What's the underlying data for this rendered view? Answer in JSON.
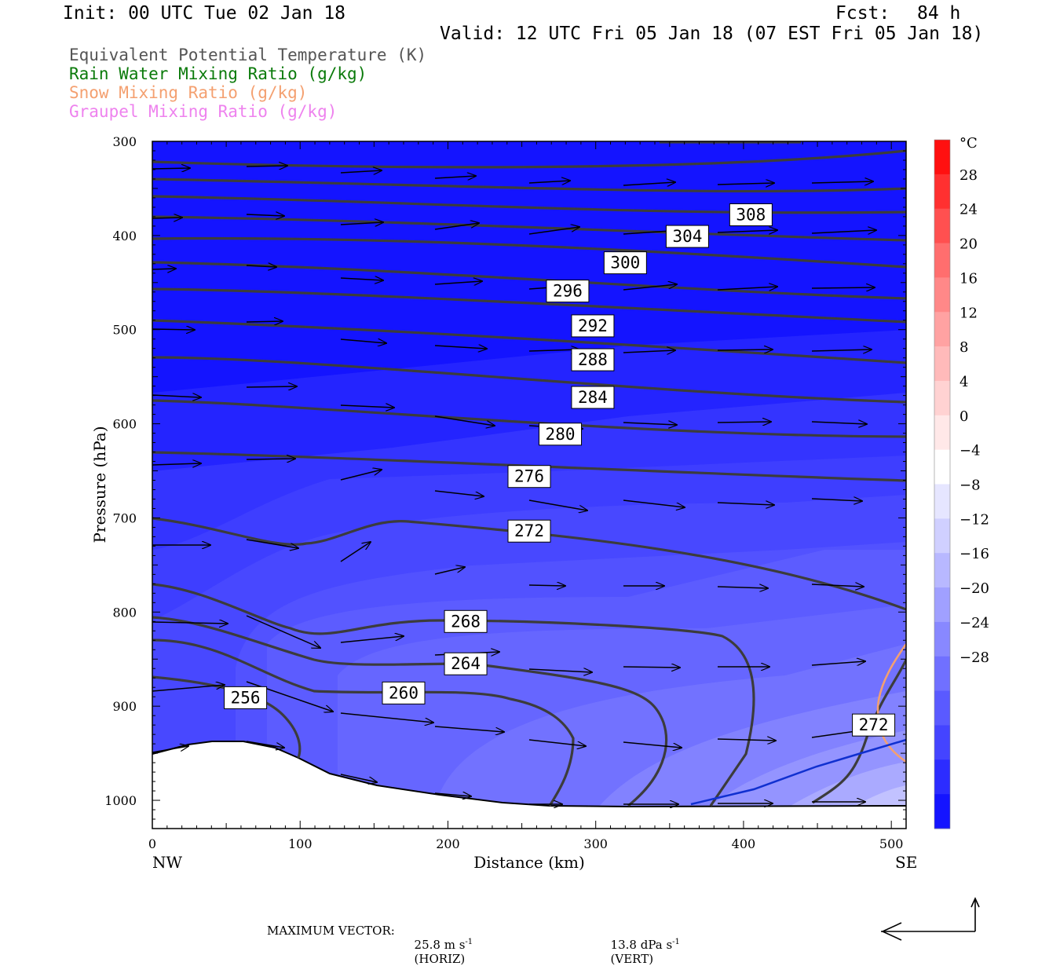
{
  "header": {
    "init": "Init: 00 UTC Tue 02 Jan 18",
    "fcst_label": "Fcst:",
    "fcst_value": "84 h",
    "valid": "Valid: 12 UTC Fri 05 Jan 18 (07 EST Fri 05 Jan 18)"
  },
  "legend": [
    {
      "text": "Equivalent Potential Temperature (K)",
      "color": "#555555"
    },
    {
      "text": "Rain Water Mixing Ratio (g/kg)",
      "color": "#0a7a0a"
    },
    {
      "text": "Snow Mixing Ratio (g/kg)",
      "color": "#f4a070"
    },
    {
      "text": "Graupel Mixing Ratio (g/kg)",
      "color": "#ee82ee"
    }
  ],
  "chart_data": {
    "type": "cross-section",
    "xlabel": "Distance (km)",
    "ylabel": "Pressure (hPa)",
    "xlim": [
      0,
      510
    ],
    "ylim": [
      1030,
      300
    ],
    "x_ticks": [
      0,
      100,
      200,
      300,
      400,
      500
    ],
    "y_ticks": [
      300,
      400,
      500,
      600,
      700,
      800,
      900,
      1000
    ],
    "x_end_labels": {
      "left": "NW",
      "right": "SE"
    },
    "colorbar": {
      "unit": "°C",
      "labels": [
        "28",
        "24",
        "20",
        "16",
        "12",
        "8",
        "4",
        "0",
        "−4",
        "−8",
        "−12",
        "−16",
        "−20",
        "−24",
        "−28"
      ],
      "colors": [
        "#ff1010",
        "#ff3030",
        "#ff5050",
        "#ff6e6e",
        "#ff8888",
        "#ffa2a2",
        "#ffbaba",
        "#ffd2d2",
        "#ffe8e8",
        "#ffffff",
        "#e6e6ff",
        "#d0d0ff",
        "#b8b8ff",
        "#a0a0ff",
        "#8888ff",
        "#7070ff",
        "#5a5aff",
        "#4444ff",
        "#2c2cff",
        "#1414ff"
      ]
    },
    "theta_e_labels": [
      {
        "value": "308",
        "x": 405,
        "p": 378
      },
      {
        "value": "304",
        "x": 362,
        "p": 401
      },
      {
        "value": "300",
        "x": 320,
        "p": 429
      },
      {
        "value": "296",
        "x": 281,
        "p": 459
      },
      {
        "value": "292",
        "x": 298,
        "p": 496
      },
      {
        "value": "288",
        "x": 298,
        "p": 532
      },
      {
        "value": "284",
        "x": 298,
        "p": 572
      },
      {
        "value": "280",
        "x": 276,
        "p": 611
      },
      {
        "value": "276",
        "x": 255,
        "p": 656
      },
      {
        "value": "272",
        "x": 255,
        "p": 714
      },
      {
        "value": "268",
        "x": 212,
        "p": 810
      },
      {
        "value": "264",
        "x": 212,
        "p": 855
      },
      {
        "value": "260",
        "x": 170,
        "p": 886
      },
      {
        "value": "256",
        "x": 63,
        "p": 891
      },
      {
        "value": "272",
        "x": 488,
        "p": 920
      }
    ]
  },
  "footer": {
    "max_vector_label": "MAXIMUM VECTOR:",
    "horiz_value": "25.8 m s",
    "horiz_exp": "-1",
    "horiz_tag": "(HORIZ)",
    "vert_value": "13.8 dPa s",
    "vert_exp": "-1",
    "vert_tag": "(VERT)"
  }
}
